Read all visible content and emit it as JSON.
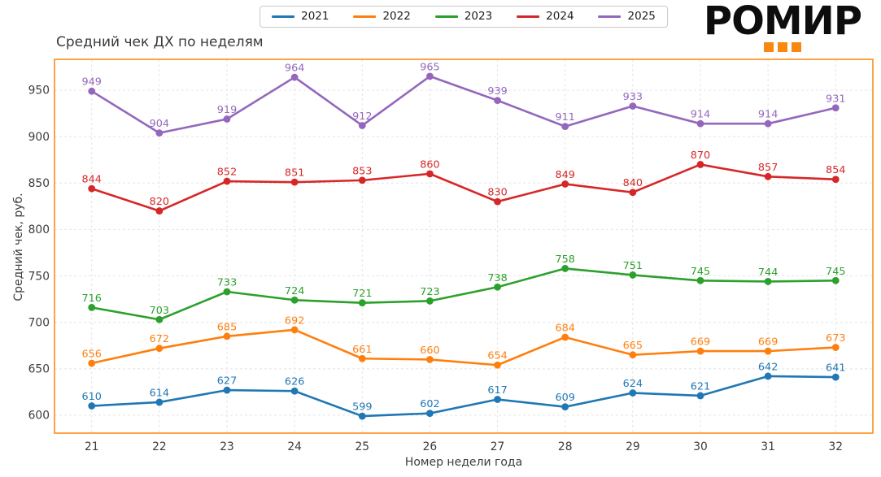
{
  "logo": {
    "text": "РОМИР",
    "accent_color": "#f9880f"
  },
  "chart_data": {
    "type": "line",
    "title": "Средний чек ДХ по неделям",
    "xlabel": "Номер недели года",
    "ylabel": "Средний чек, руб.",
    "x": [
      21,
      22,
      23,
      24,
      25,
      26,
      27,
      28,
      29,
      30,
      31,
      32
    ],
    "series": [
      {
        "name": "2021",
        "color": "#1f77b4",
        "values": [
          610,
          614,
          627,
          626,
          599,
          602,
          617,
          609,
          624,
          621,
          642,
          641
        ]
      },
      {
        "name": "2022",
        "color": "#ff7f0e",
        "values": [
          656,
          672,
          685,
          692,
          661,
          660,
          654,
          684,
          665,
          669,
          669,
          673
        ]
      },
      {
        "name": "2023",
        "color": "#2ca02c",
        "values": [
          716,
          703,
          733,
          724,
          721,
          723,
          738,
          758,
          751,
          745,
          744,
          745
        ]
      },
      {
        "name": "2024",
        "color": "#d62728",
        "values": [
          844,
          820,
          852,
          851,
          853,
          860,
          830,
          849,
          840,
          870,
          857,
          854
        ]
      },
      {
        "name": "2025",
        "color": "#9467bd",
        "values": [
          949,
          904,
          919,
          964,
          912,
          965,
          939,
          911,
          933,
          914,
          914,
          931
        ]
      }
    ],
    "yticks": [
      600,
      650,
      700,
      750,
      800,
      850,
      900,
      950
    ],
    "ylim": [
      580.7,
      983.3
    ],
    "xlim": [
      20.45,
      32.55
    ],
    "grid": true,
    "point_labels": true,
    "legend_position": "top-center",
    "border_color": "#ff8c1a",
    "grid_color": "#e4e4e4"
  }
}
